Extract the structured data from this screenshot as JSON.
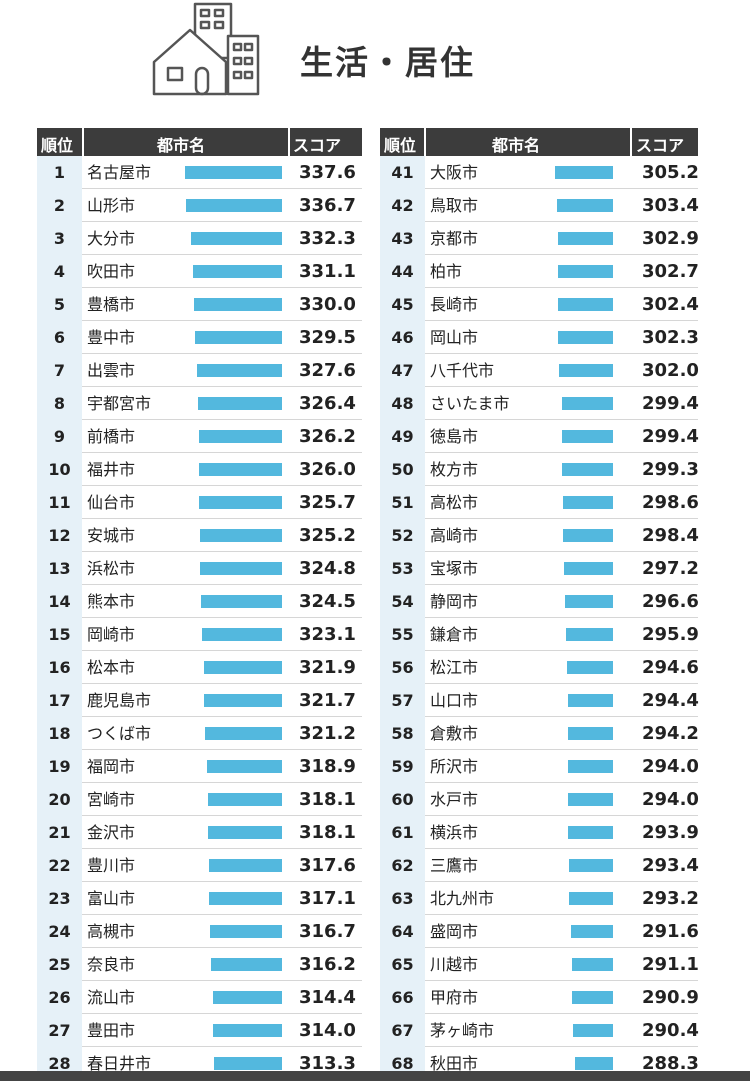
{
  "header": {
    "title": "生活・居住",
    "icon": "house-building-icon"
  },
  "colors": {
    "bar": "#53b8de",
    "rank_bg": "#e6f1f8",
    "header_bg": "#3c3c3c"
  },
  "table_headers": {
    "rank": "順位",
    "city": "都市名",
    "score": "スコア"
  },
  "chart_data": {
    "type": "bar",
    "orientation": "horizontal",
    "title": "生活・居住",
    "columns": [
      "順位",
      "都市名",
      "スコア"
    ],
    "left": [
      {
        "rank": "1",
        "city": "名古屋市",
        "score": 337.6
      },
      {
        "rank": "2",
        "city": "山形市",
        "score": 336.7
      },
      {
        "rank": "3",
        "city": "大分市",
        "score": 332.3
      },
      {
        "rank": "4",
        "city": "吹田市",
        "score": 331.1
      },
      {
        "rank": "5",
        "city": "豊橋市",
        "score": 330.0
      },
      {
        "rank": "6",
        "city": "豊中市",
        "score": 329.5
      },
      {
        "rank": "7",
        "city": "出雲市",
        "score": 327.6
      },
      {
        "rank": "8",
        "city": "宇都宮市",
        "score": 326.4
      },
      {
        "rank": "9",
        "city": "前橋市",
        "score": 326.2
      },
      {
        "rank": "10",
        "city": "福井市",
        "score": 326.0
      },
      {
        "rank": "11",
        "city": "仙台市",
        "score": 325.7
      },
      {
        "rank": "12",
        "city": "安城市",
        "score": 325.2
      },
      {
        "rank": "13",
        "city": "浜松市",
        "score": 324.8
      },
      {
        "rank": "14",
        "city": "熊本市",
        "score": 324.5
      },
      {
        "rank": "15",
        "city": "岡崎市",
        "score": 323.1
      },
      {
        "rank": "16",
        "city": "松本市",
        "score": 321.9
      },
      {
        "rank": "17",
        "city": "鹿児島市",
        "score": 321.7
      },
      {
        "rank": "18",
        "city": "つくば市",
        "score": 321.2
      },
      {
        "rank": "19",
        "city": "福岡市",
        "score": 318.9
      },
      {
        "rank": "20",
        "city": "宮崎市",
        "score": 318.1
      },
      {
        "rank": "21",
        "city": "金沢市",
        "score": 318.1
      },
      {
        "rank": "22",
        "city": "豊川市",
        "score": 317.6
      },
      {
        "rank": "23",
        "city": "富山市",
        "score": 317.1
      },
      {
        "rank": "24",
        "city": "高槻市",
        "score": 316.7
      },
      {
        "rank": "25",
        "city": "奈良市",
        "score": 316.2
      },
      {
        "rank": "26",
        "city": "流山市",
        "score": 314.4
      },
      {
        "rank": "27",
        "city": "豊田市",
        "score": 314.0
      },
      {
        "rank": "28",
        "city": "春日井市",
        "score": 313.3
      }
    ],
    "right": [
      {
        "rank": "41",
        "city": "大阪市",
        "score": 305.2
      },
      {
        "rank": "42",
        "city": "鳥取市",
        "score": 303.4
      },
      {
        "rank": "43",
        "city": "京都市",
        "score": 302.9
      },
      {
        "rank": "44",
        "city": "柏市",
        "score": 302.7
      },
      {
        "rank": "45",
        "city": "長崎市",
        "score": 302.4
      },
      {
        "rank": "46",
        "city": "岡山市",
        "score": 302.3
      },
      {
        "rank": "47",
        "city": "八千代市",
        "score": 302.0
      },
      {
        "rank": "48",
        "city": "さいたま市",
        "score": 299.4
      },
      {
        "rank": "49",
        "city": "徳島市",
        "score": 299.4
      },
      {
        "rank": "50",
        "city": "枚方市",
        "score": 299.3
      },
      {
        "rank": "51",
        "city": "高松市",
        "score": 298.6
      },
      {
        "rank": "52",
        "city": "高崎市",
        "score": 298.4
      },
      {
        "rank": "53",
        "city": "宝塚市",
        "score": 297.2
      },
      {
        "rank": "54",
        "city": "静岡市",
        "score": 296.6
      },
      {
        "rank": "55",
        "city": "鎌倉市",
        "score": 295.9
      },
      {
        "rank": "56",
        "city": "松江市",
        "score": 294.6
      },
      {
        "rank": "57",
        "city": "山口市",
        "score": 294.4
      },
      {
        "rank": "58",
        "city": "倉敷市",
        "score": 294.2
      },
      {
        "rank": "59",
        "city": "所沢市",
        "score": 294.0
      },
      {
        "rank": "60",
        "city": "水戸市",
        "score": 294.0
      },
      {
        "rank": "61",
        "city": "横浜市",
        "score": 293.9
      },
      {
        "rank": "62",
        "city": "三鷹市",
        "score": 293.4
      },
      {
        "rank": "63",
        "city": "北九州市",
        "score": 293.2
      },
      {
        "rank": "64",
        "city": "盛岡市",
        "score": 291.6
      },
      {
        "rank": "65",
        "city": "川越市",
        "score": 291.1
      },
      {
        "rank": "66",
        "city": "甲府市",
        "score": 290.9
      },
      {
        "rank": "67",
        "city": "茅ヶ崎市",
        "score": 290.4
      },
      {
        "rank": "68",
        "city": "秋田市",
        "score": 288.3
      }
    ]
  }
}
